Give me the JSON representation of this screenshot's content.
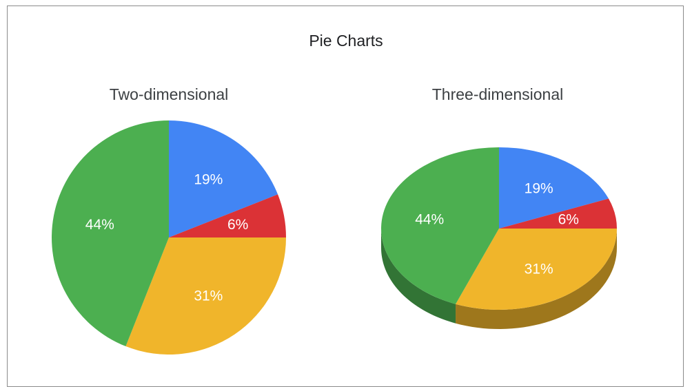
{
  "title": "Pie Charts",
  "colors": {
    "blue": "#4285F4",
    "red": "#DB3236",
    "yellow": "#F0B52B",
    "green": "#4CAF50"
  },
  "chart_data": [
    {
      "type": "pie",
      "title": "Two-dimensional",
      "style": "2d",
      "slices": [
        {
          "value": 19,
          "label": "19%",
          "color": "#4285F4"
        },
        {
          "value": 6,
          "label": "6%",
          "color": "#DB3236"
        },
        {
          "value": 31,
          "label": "31%",
          "color": "#F0B52B"
        },
        {
          "value": 44,
          "label": "44%",
          "color": "#4CAF50"
        }
      ]
    },
    {
      "type": "pie",
      "title": "Three-dimensional",
      "style": "3d",
      "slices": [
        {
          "value": 19,
          "label": "19%",
          "color": "#4285F4"
        },
        {
          "value": 6,
          "label": "6%",
          "color": "#DB3236"
        },
        {
          "value": 31,
          "label": "31%",
          "color": "#F0B52B"
        },
        {
          "value": 44,
          "label": "44%",
          "color": "#4CAF50"
        }
      ]
    }
  ]
}
